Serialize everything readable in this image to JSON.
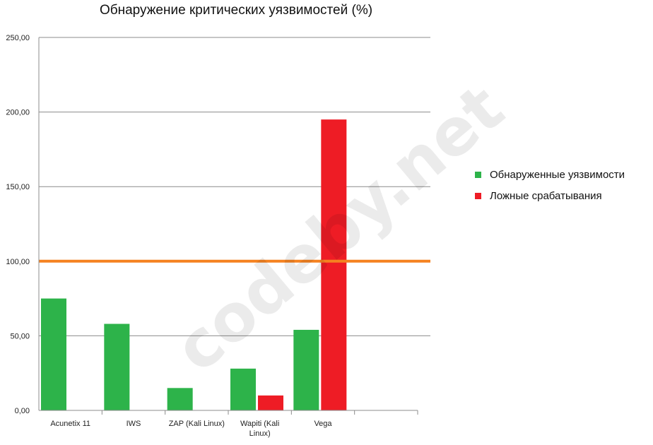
{
  "chart_data": {
    "type": "bar",
    "title": "Обнаружение критических уязвимостей (%)",
    "categories": [
      "Acunetix 11",
      "IWS",
      "ZAP (Kali Linux)",
      "Wapiti (Kali Linux)",
      "Vega",
      ""
    ],
    "series": [
      {
        "name": "Обнаруженные уязвимости",
        "color": "#2db34a",
        "values": [
          75,
          58,
          15,
          28,
          54,
          null
        ]
      },
      {
        "name": "Ложные срабатывания",
        "color": "#ee1c25",
        "values": [
          null,
          null,
          null,
          10,
          195,
          null
        ]
      }
    ],
    "reference_line": {
      "value": 100,
      "color": "#f58220"
    },
    "ylim": [
      0,
      250
    ],
    "yticks": [
      {
        "value": 0,
        "label": "0,00"
      },
      {
        "value": 50,
        "label": "50,00"
      },
      {
        "value": 100,
        "label": "100,00"
      },
      {
        "value": 150,
        "label": "150,00"
      },
      {
        "value": 200,
        "label": "200,00"
      },
      {
        "value": 250,
        "label": "250,00"
      }
    ],
    "grid": true,
    "legend_position": "right",
    "xlabel": "",
    "ylabel": ""
  },
  "watermark": "codeby.net"
}
